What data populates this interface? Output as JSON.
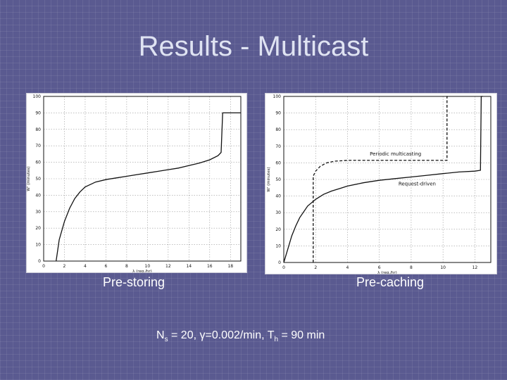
{
  "slide": {
    "title": "Results - Multicast",
    "caption_left": "Pre-storing",
    "caption_right": "Pre-caching",
    "footnote": {
      "n": "N",
      "n_sub": "s",
      "n_val": " = 20, ",
      "gamma": "γ",
      "gamma_val": "=0.002/min, T",
      "t_sub": "h",
      "t_val": " = 90 min"
    }
  },
  "chart_data": [
    {
      "type": "line",
      "xlabel": "λ (req./hr)",
      "ylabel": "W' (minutes)",
      "xlim": [
        0,
        19
      ],
      "ylim": [
        0,
        100
      ],
      "xticks": [
        0,
        2,
        4,
        6,
        8,
        10,
        12,
        14,
        16,
        18
      ],
      "yticks": [
        0,
        10,
        20,
        30,
        40,
        50,
        60,
        70,
        80,
        90,
        100
      ],
      "grid": true,
      "series": [
        {
          "style": "solid",
          "x": [
            1.2,
            1.5,
            2,
            2.5,
            3,
            3.5,
            4,
            5,
            6,
            7,
            8,
            9,
            10,
            11,
            12,
            13,
            14,
            15,
            16,
            16.8,
            17.1,
            17.25,
            17.5,
            19
          ],
          "y": [
            0,
            13,
            24,
            32,
            38,
            42,
            45,
            48,
            49.5,
            50.5,
            51.5,
            52.5,
            53.5,
            54.5,
            55.5,
            56.5,
            58,
            59.5,
            61.5,
            64,
            66,
            90,
            90,
            90
          ]
        }
      ]
    },
    {
      "type": "line",
      "xlabel": "λ (req./hr)",
      "ylabel": "W' (minutes)",
      "xlim": [
        0,
        13
      ],
      "ylim": [
        0,
        100
      ],
      "xticks": [
        0,
        2,
        4,
        6,
        8,
        10,
        12
      ],
      "yticks": [
        0,
        10,
        20,
        30,
        40,
        50,
        60,
        70,
        80,
        90,
        100
      ],
      "grid": true,
      "annotations": [
        "Periodic multicasting",
        "Request-driven"
      ],
      "series": [
        {
          "name": "Periodic multicasting",
          "style": "dashed",
          "x": [
            1.85,
            1.85,
            2,
            2.3,
            2.7,
            3.2,
            4,
            5,
            6,
            7,
            8,
            9,
            10,
            10.25,
            10.25,
            10.3
          ],
          "y": [
            0,
            52,
            55,
            58,
            60,
            61,
            61.5,
            61.5,
            61.5,
            61.5,
            61.5,
            61.5,
            61.5,
            61.5,
            100,
            100
          ]
        },
        {
          "name": "Request-driven",
          "style": "solid",
          "x": [
            0,
            0.25,
            0.5,
            0.75,
            1,
            1.5,
            2,
            2.5,
            3,
            3.5,
            4,
            5,
            6,
            7,
            8,
            9,
            10,
            11,
            12,
            12.35,
            12.4,
            12.5
          ],
          "y": [
            0,
            8,
            16,
            22,
            27,
            34,
            38,
            41,
            43,
            44.5,
            46,
            48,
            49.5,
            50.5,
            51.5,
            52.5,
            53.5,
            54.5,
            55,
            55.5,
            100,
            100
          ]
        }
      ]
    }
  ]
}
